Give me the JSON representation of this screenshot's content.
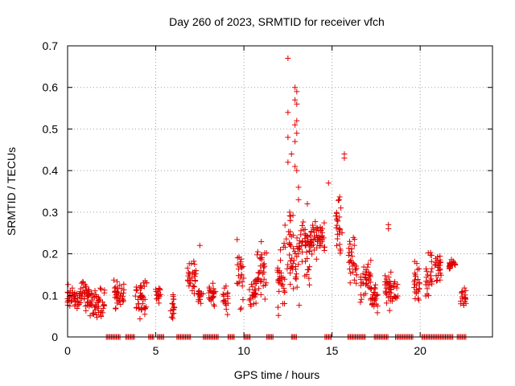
{
  "chart_data": {
    "type": "scatter",
    "title": "Day 260 of 2023, SRMTID for receiver vfch",
    "xlabel": "GPS time / hours",
    "ylabel": "SRMTID / TECUs",
    "xlim": [
      0,
      24.1
    ],
    "ylim": [
      0,
      0.7
    ],
    "x_ticks": [
      0,
      5,
      10,
      15,
      20
    ],
    "y_ticks": [
      0,
      0.1,
      0.2,
      0.3,
      0.4,
      0.5,
      0.6,
      0.7
    ],
    "x_tick_labels": [
      "0",
      "5",
      "10",
      "15",
      "20"
    ],
    "y_tick_labels": [
      "0",
      "0.1",
      "0.2",
      "0.3",
      "0.4",
      "0.5",
      "0.6",
      "0.7"
    ],
    "grid": true,
    "marker": "+",
    "color": "#e00000",
    "clusters": [
      {
        "x0": 0.0,
        "x1": 0.6,
        "y0": 0.06,
        "y1": 0.13
      },
      {
        "x0": 0.6,
        "x1": 1.2,
        "y0": 0.06,
        "y1": 0.14
      },
      {
        "x0": 1.2,
        "x1": 2.1,
        "y0": 0.04,
        "y1": 0.12
      },
      {
        "x0": 2.6,
        "x1": 3.2,
        "y0": 0.06,
        "y1": 0.15
      },
      {
        "x0": 3.8,
        "x1": 4.5,
        "y0": 0.04,
        "y1": 0.14
      },
      {
        "x0": 5.0,
        "x1": 5.3,
        "y0": 0.08,
        "y1": 0.12
      },
      {
        "x0": 5.8,
        "x1": 6.1,
        "y0": 0.04,
        "y1": 0.11
      },
      {
        "x0": 6.8,
        "x1": 7.3,
        "y0": 0.1,
        "y1": 0.19
      },
      {
        "x0": 7.4,
        "x1": 7.7,
        "y0": 0.08,
        "y1": 0.12
      },
      {
        "x0": 8.0,
        "x1": 8.4,
        "y0": 0.06,
        "y1": 0.14
      },
      {
        "x0": 8.8,
        "x1": 9.1,
        "y0": 0.05,
        "y1": 0.14
      },
      {
        "x0": 9.6,
        "x1": 10.0,
        "y0": 0.06,
        "y1": 0.25
      },
      {
        "x0": 10.3,
        "x1": 10.7,
        "y0": 0.06,
        "y1": 0.14
      },
      {
        "x0": 10.7,
        "x1": 11.3,
        "y0": 0.07,
        "y1": 0.24
      },
      {
        "x0": 11.9,
        "x1": 12.4,
        "y0": 0.04,
        "y1": 0.25
      },
      {
        "x0": 12.3,
        "x1": 12.8,
        "y0": 0.1,
        "y1": 0.35
      },
      {
        "x0": 12.8,
        "x1": 13.2,
        "y0": 0.06,
        "y1": 0.3
      },
      {
        "x0": 13.2,
        "x1": 13.8,
        "y0": 0.12,
        "y1": 0.3
      },
      {
        "x0": 13.7,
        "x1": 14.6,
        "y0": 0.18,
        "y1": 0.28
      },
      {
        "x0": 15.2,
        "x1": 15.6,
        "y0": 0.16,
        "y1": 0.35
      },
      {
        "x0": 15.9,
        "x1": 16.4,
        "y0": 0.12,
        "y1": 0.25
      },
      {
        "x0": 16.6,
        "x1": 17.2,
        "y0": 0.07,
        "y1": 0.2
      },
      {
        "x0": 17.2,
        "x1": 17.6,
        "y0": 0.05,
        "y1": 0.16
      },
      {
        "x0": 18.0,
        "x1": 18.8,
        "y0": 0.06,
        "y1": 0.17
      },
      {
        "x0": 19.6,
        "x1": 20.0,
        "y0": 0.08,
        "y1": 0.19
      },
      {
        "x0": 20.3,
        "x1": 20.7,
        "y0": 0.08,
        "y1": 0.22
      },
      {
        "x0": 20.8,
        "x1": 21.2,
        "y0": 0.12,
        "y1": 0.21
      },
      {
        "x0": 21.6,
        "x1": 22.0,
        "y0": 0.16,
        "y1": 0.19
      },
      {
        "x0": 22.3,
        "x1": 22.6,
        "y0": 0.07,
        "y1": 0.12
      }
    ],
    "outliers": [
      {
        "x": 12.5,
        "y": 0.67
      },
      {
        "x": 12.5,
        "y": 0.54
      },
      {
        "x": 12.5,
        "y": 0.48
      },
      {
        "x": 12.5,
        "y": 0.42
      },
      {
        "x": 12.7,
        "y": 0.44
      },
      {
        "x": 12.6,
        "y": 0.3
      },
      {
        "x": 12.9,
        "y": 0.6
      },
      {
        "x": 13.0,
        "y": 0.59
      },
      {
        "x": 12.9,
        "y": 0.57
      },
      {
        "x": 13.0,
        "y": 0.56
      },
      {
        "x": 13.0,
        "y": 0.52
      },
      {
        "x": 12.9,
        "y": 0.51
      },
      {
        "x": 13.0,
        "y": 0.49
      },
      {
        "x": 12.9,
        "y": 0.47
      },
      {
        "x": 12.9,
        "y": 0.41
      },
      {
        "x": 13.0,
        "y": 0.4
      },
      {
        "x": 13.1,
        "y": 0.36
      },
      {
        "x": 13.1,
        "y": 0.33
      },
      {
        "x": 14.8,
        "y": 0.37
      },
      {
        "x": 15.7,
        "y": 0.44
      },
      {
        "x": 15.7,
        "y": 0.43
      },
      {
        "x": 15.4,
        "y": 0.33
      },
      {
        "x": 15.5,
        "y": 0.31
      },
      {
        "x": 18.2,
        "y": 0.27
      },
      {
        "x": 18.2,
        "y": 0.26
      },
      {
        "x": 7.5,
        "y": 0.22
      },
      {
        "x": 13.6,
        "y": 0.32
      }
    ],
    "zero_runs": [
      [
        2.2,
        3.0
      ],
      [
        3.3,
        3.8
      ],
      [
        4.6,
        4.9
      ],
      [
        5.1,
        5.5
      ],
      [
        6.2,
        7.0
      ],
      [
        7.7,
        8.6
      ],
      [
        9.1,
        9.5
      ],
      [
        10.0,
        10.4
      ],
      [
        11.3,
        11.7
      ],
      [
        12.7,
        13.0
      ],
      [
        14.6,
        15.0
      ],
      [
        15.9,
        16.9
      ],
      [
        17.4,
        18.2
      ],
      [
        18.6,
        19.6
      ],
      [
        20.1,
        21.9
      ],
      [
        22.1,
        22.6
      ]
    ]
  }
}
